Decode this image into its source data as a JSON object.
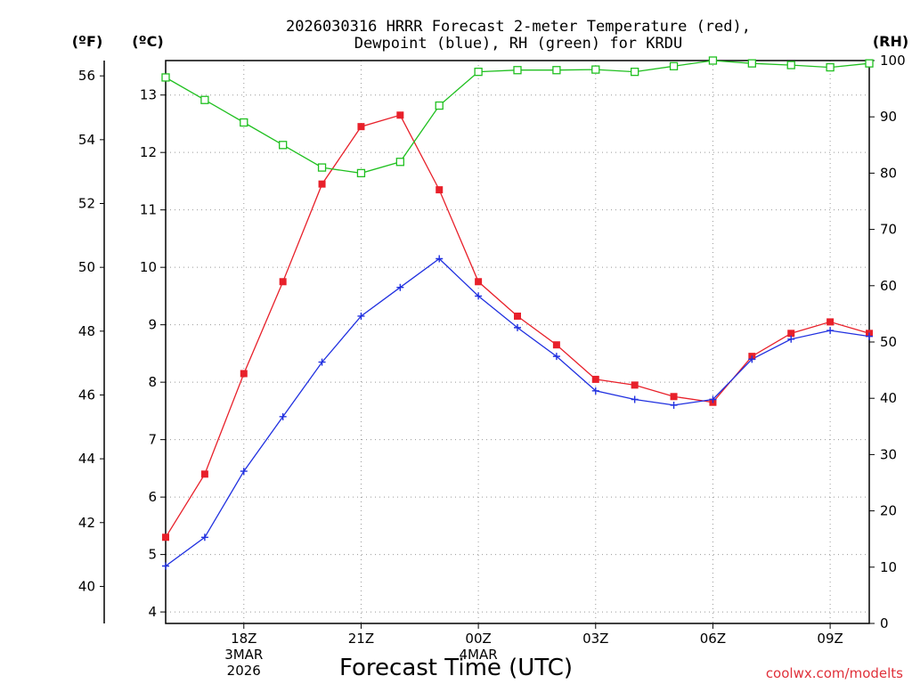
{
  "chart_data": {
    "type": "line",
    "title_line1": "2026030316 HRRR Forecast 2-meter Temperature (red),",
    "title_line2": "Dewpoint (blue), RH (green) for KRDU",
    "xlabel": "Forecast Time (UTC)",
    "credit": "coolwx.com/modelts",
    "units": {
      "left_f": "(ºF)",
      "left_c": "(ºC)",
      "right": "(RH)"
    },
    "x_hours": [
      16,
      17,
      18,
      19,
      20,
      21,
      22,
      23,
      24,
      25,
      26,
      27,
      28,
      29,
      30,
      31,
      32,
      33,
      34
    ],
    "x_ticks": [
      {
        "hour": 18,
        "label": "18Z",
        "sub1": "3MAR",
        "sub2": "2026"
      },
      {
        "hour": 21,
        "label": "21Z",
        "sub1": "",
        "sub2": ""
      },
      {
        "hour": 24,
        "label": "00Z",
        "sub1": "4MAR",
        "sub2": ""
      },
      {
        "hour": 27,
        "label": "03Z",
        "sub1": "",
        "sub2": ""
      },
      {
        "hour": 30,
        "label": "06Z",
        "sub1": "",
        "sub2": ""
      },
      {
        "hour": 33,
        "label": "09Z",
        "sub1": "",
        "sub2": ""
      }
    ],
    "celsius_axis": {
      "min": 3.8,
      "max": 13.6,
      "ticks": [
        4,
        5,
        6,
        7,
        8,
        9,
        10,
        11,
        12,
        13
      ]
    },
    "fahrenheit_ticks": [
      40,
      42,
      44,
      46,
      48,
      50,
      52,
      54,
      56
    ],
    "rh_axis": {
      "min": 0,
      "max": 100,
      "ticks": [
        0,
        10,
        20,
        30,
        40,
        50,
        60,
        70,
        80,
        90,
        100
      ]
    },
    "series": [
      {
        "name": "Temperature (°C)",
        "color": "#e8202a",
        "marker": "filled-square",
        "axis": "celsius",
        "values": [
          5.3,
          6.4,
          8.15,
          9.75,
          11.45,
          12.45,
          12.65,
          11.35,
          9.75,
          9.15,
          8.65,
          8.05,
          7.95,
          7.75,
          7.65,
          8.45,
          8.85,
          9.05,
          8.85
        ]
      },
      {
        "name": "Dewpoint (°C)",
        "color": "#2030e0",
        "marker": "plus",
        "axis": "celsius",
        "values": [
          4.8,
          5.3,
          6.45,
          7.4,
          8.35,
          9.15,
          9.65,
          10.15,
          9.5,
          8.95,
          8.45,
          7.85,
          7.7,
          7.6,
          7.7,
          8.4,
          8.75,
          8.9,
          8.8
        ]
      },
      {
        "name": "RH (%)",
        "color": "#20c020",
        "marker": "open-square",
        "axis": "rh",
        "values": [
          97,
          93,
          89,
          85,
          81,
          80,
          82,
          92,
          98,
          98.3,
          98.3,
          98.4,
          98,
          99,
          100,
          99.5,
          99.2,
          98.8,
          99.5
        ]
      }
    ]
  }
}
